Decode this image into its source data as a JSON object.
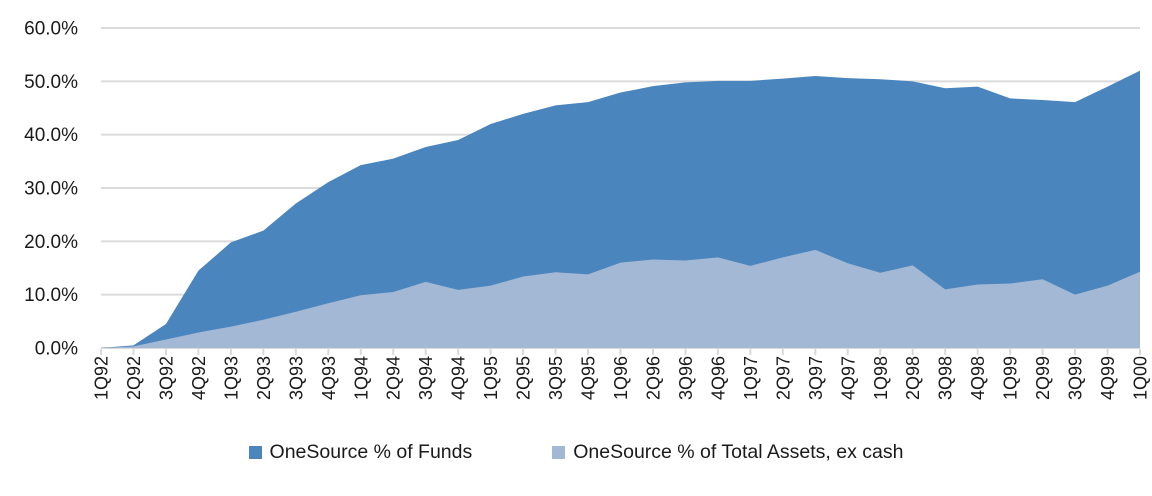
{
  "chart_data": {
    "type": "area",
    "title": "",
    "xlabel": "",
    "ylabel": "",
    "ylim": [
      0,
      60
    ],
    "ytick_step": 10,
    "grid": true,
    "legend_position": "bottom",
    "overlap": "overlaid_not_stacked",
    "y_ticks": [
      {
        "value": 60,
        "label": "60.0%"
      },
      {
        "value": 50,
        "label": "50.0%"
      },
      {
        "value": 40,
        "label": "40.0%"
      },
      {
        "value": 30,
        "label": "30.0%"
      },
      {
        "value": 20,
        "label": "20.0%"
      },
      {
        "value": 10,
        "label": "10.0%"
      },
      {
        "value": 0,
        "label": "0.0%"
      }
    ],
    "categories": [
      "1Q92",
      "2Q92",
      "3Q92",
      "4Q92",
      "1Q93",
      "2Q93",
      "3Q93",
      "4Q93",
      "1Q94",
      "2Q94",
      "3Q94",
      "4Q94",
      "1Q95",
      "2Q95",
      "3Q95",
      "4Q95",
      "1Q96",
      "2Q96",
      "3Q96",
      "4Q96",
      "1Q97",
      "2Q97",
      "3Q97",
      "4Q97",
      "1Q98",
      "2Q98",
      "3Q98",
      "4Q98",
      "1Q99",
      "2Q99",
      "3Q99",
      "4Q99",
      "1Q00"
    ],
    "series": [
      {
        "name": "OneSource % of Funds",
        "color": "#4A85BE",
        "values": [
          0,
          0.5,
          4.5,
          14.5,
          19.8,
          22.0,
          27.1,
          31.1,
          34.3,
          35.5,
          37.7,
          39.0,
          42.0,
          43.9,
          45.5,
          46.1,
          47.9,
          49.1,
          49.8,
          50.1,
          50.1,
          50.5,
          51.0,
          50.6,
          50.4,
          50.0,
          48.7,
          49.0,
          46.8,
          46.5,
          46.1,
          49.0,
          52.0
        ]
      },
      {
        "name": "OneSource % of Total Assets, ex cash",
        "color": "#A2B8D4",
        "values": [
          0,
          0.3,
          1.6,
          2.9,
          4.0,
          5.3,
          6.8,
          8.4,
          9.9,
          10.5,
          12.4,
          10.9,
          11.7,
          13.4,
          14.2,
          13.8,
          16.0,
          16.6,
          16.4,
          17.0,
          15.4,
          17.0,
          18.4,
          15.9,
          14.1,
          15.5,
          11.0,
          11.9,
          12.1,
          12.9,
          10.0,
          11.7,
          14.3
        ]
      }
    ],
    "colors": {
      "gridline": "#DBDBDB",
      "axis_line": "#D9D9D9",
      "tick_mark": "#D9D9D9",
      "label_text": "#1a1a1a"
    }
  }
}
